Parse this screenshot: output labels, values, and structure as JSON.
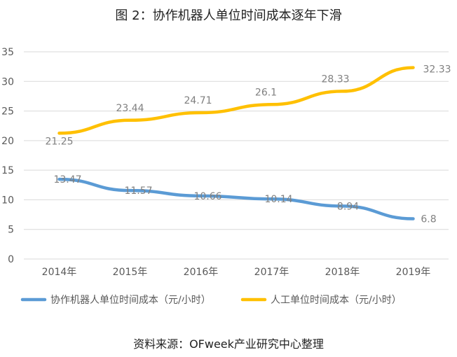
{
  "chart_data": {
    "type": "line",
    "title": "图 2：协作机器人单位时间成本逐年下滑",
    "categories": [
      "2014年",
      "2015年",
      "2016年",
      "2017年",
      "2018年",
      "2019年"
    ],
    "ylim": [
      0,
      35
    ],
    "yticks": [
      0,
      5,
      10,
      15,
      20,
      25,
      30,
      35
    ],
    "grid": true,
    "legend_position": "bottom",
    "series": [
      {
        "name": "协作机器人单位时间成本（元/小时）",
        "values": [
          13.47,
          11.57,
          10.66,
          10.14,
          8.94,
          6.8
        ],
        "labels": [
          "13.47",
          "11.57",
          "10.66",
          "10.14",
          "8.94",
          "6.8"
        ],
        "color": "#5B9BD5"
      },
      {
        "name": "人工单位时间成本（元/小时）",
        "values": [
          21.25,
          23.44,
          24.71,
          26.1,
          28.33,
          32.33
        ],
        "labels": [
          "21.25",
          "23.44",
          "24.71",
          "26.1",
          "28.33",
          "32.33"
        ],
        "color": "#FFC000"
      }
    ]
  },
  "footer": {
    "source": "资料来源：OFweek产业研究中心整理"
  }
}
